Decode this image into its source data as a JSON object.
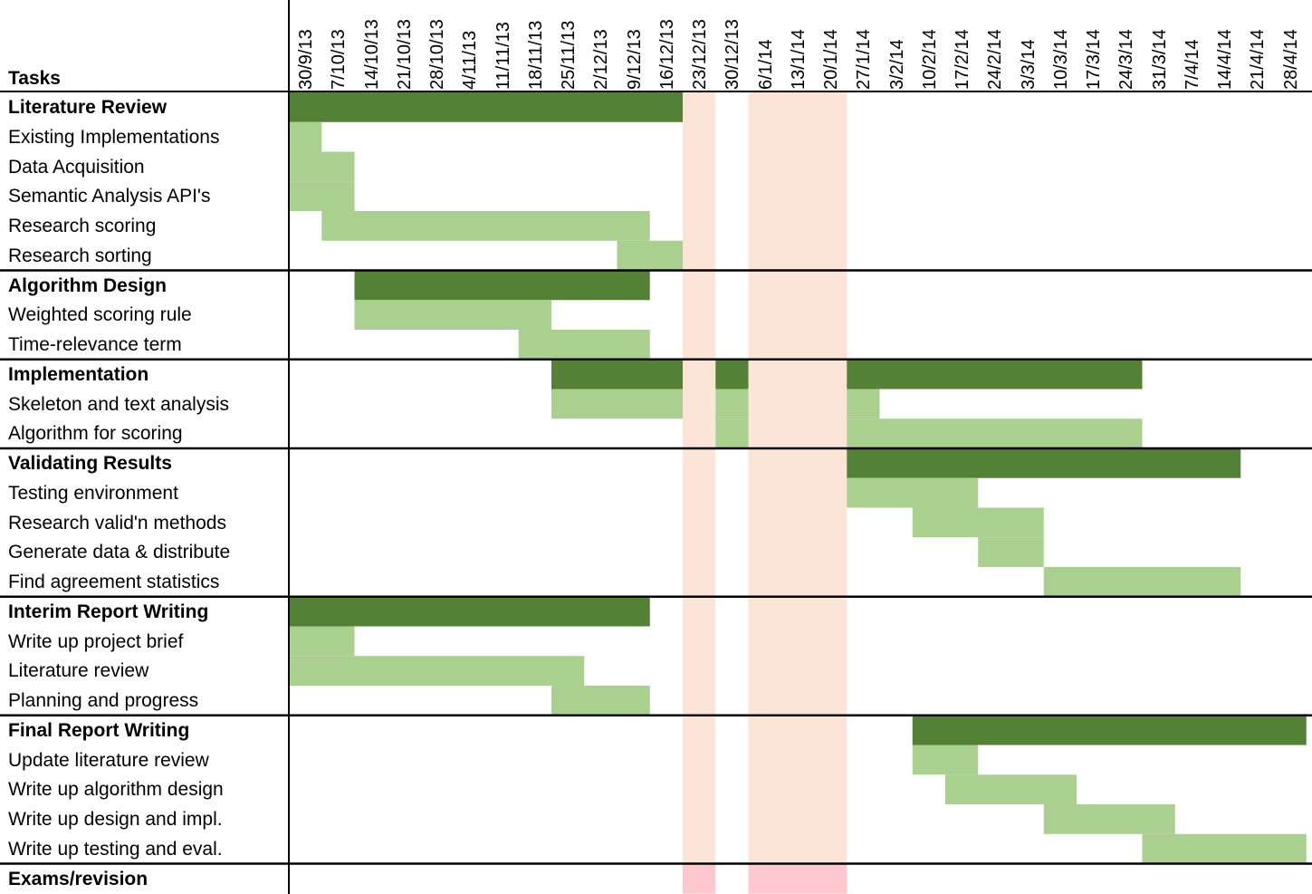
{
  "chart_data": {
    "type": "gantt",
    "header": "Tasks",
    "weeks": [
      "30/9/13",
      "7/10/13",
      "14/10/13",
      "21/10/13",
      "28/10/13",
      "4/11/13",
      "11/11/13",
      "18/11/13",
      "25/11/13",
      "2/12/13",
      "9/12/13",
      "16/12/13",
      "23/12/13",
      "30/12/13",
      "6/1/14",
      "13/1/14",
      "20/1/14",
      "27/1/14",
      "3/2/14",
      "10/2/14",
      "17/2/14",
      "24/2/14",
      "3/3/14",
      "10/3/14",
      "17/3/14",
      "24/3/14",
      "31/3/14",
      "7/4/14",
      "14/4/14",
      "21/4/14",
      "28/4/14"
    ],
    "exam_periods": [
      {
        "start": "23/12/13",
        "end": "23/12/13"
      },
      {
        "start": "6/1/14",
        "end": "20/1/14"
      }
    ],
    "groups": [
      {
        "name": "Literature Review",
        "start": "30/9/13",
        "end": "16/12/13",
        "tasks": [
          {
            "name": "Existing Implementations",
            "start": "30/9/13",
            "end": "30/9/13"
          },
          {
            "name": "Data Acquisition",
            "start": "30/9/13",
            "end": "7/10/13"
          },
          {
            "name": "Semantic Analysis API's",
            "start": "30/9/13",
            "end": "7/10/13"
          },
          {
            "name": "Research scoring",
            "start": "7/10/13",
            "end": "9/12/13"
          },
          {
            "name": "Research sorting",
            "start": "9/12/13",
            "end": "16/12/13"
          }
        ]
      },
      {
        "name": "Algorithm Design",
        "start": "14/10/13",
        "end": "9/12/13",
        "tasks": [
          {
            "name": "Weighted scoring rule",
            "start": "14/10/13",
            "end": "18/11/13"
          },
          {
            "name": "Time-relevance term",
            "start": "18/11/13",
            "end": "9/12/13"
          }
        ]
      },
      {
        "name": "Implementation",
        "segments": [
          {
            "start": "25/11/13",
            "end": "16/12/13"
          },
          {
            "start": "30/12/13",
            "end": "30/12/13"
          },
          {
            "start": "27/1/14",
            "end": "24/3/14"
          }
        ],
        "tasks": [
          {
            "name": "Skeleton and text analysis",
            "segments": [
              {
                "start": "25/11/13",
                "end": "16/12/13"
              },
              {
                "start": "30/12/13",
                "end": "30/12/13"
              },
              {
                "start": "27/1/14",
                "end": "27/1/14"
              }
            ]
          },
          {
            "name": "Algorithm for scoring",
            "segments": [
              {
                "start": "30/12/13",
                "end": "30/12/13"
              },
              {
                "start": "27/1/14",
                "end": "24/3/14"
              }
            ]
          }
        ]
      },
      {
        "name": "Validating Results",
        "start": "27/1/14",
        "end": "14/4/14",
        "tasks": [
          {
            "name": "Testing environment",
            "start": "27/1/14",
            "end": "17/2/14"
          },
          {
            "name": "Research valid'n methods",
            "start": "10/2/14",
            "end": "3/3/14"
          },
          {
            "name": "Generate data & distribute",
            "start": "24/2/14",
            "end": "3/3/14"
          },
          {
            "name": "Find agreement statistics",
            "start": "10/3/14",
            "end": "14/4/14"
          }
        ]
      },
      {
        "name": "Interim Report Writing",
        "start": "30/9/13",
        "end": "9/12/13",
        "tasks": [
          {
            "name": "Write up project brief",
            "start": "30/9/13",
            "end": "7/10/13"
          },
          {
            "name": "Literature review",
            "start": "30/9/13",
            "end": "25/11/13"
          },
          {
            "name": "Planning and progress",
            "start": "25/11/13",
            "end": "9/12/13"
          }
        ]
      },
      {
        "name": "Final Report Writing",
        "start": "10/2/14",
        "end": "28/4/14",
        "tasks": [
          {
            "name": "Update literature review",
            "start": "10/2/14",
            "end": "17/2/14"
          },
          {
            "name": "Write up algorithm design",
            "start": "17/2/14",
            "end": "10/3/14"
          },
          {
            "name": "Write up design and impl.",
            "start": "10/3/14",
            "end": "31/3/14"
          },
          {
            "name": "Write up testing and eval.",
            "start": "31/3/14",
            "end": "28/4/14"
          }
        ]
      },
      {
        "name": "Exams/revision",
        "segments": [
          {
            "start": "23/12/13",
            "end": "23/12/13"
          },
          {
            "start": "6/1/14",
            "end": "20/1/14"
          }
        ],
        "tasks": []
      }
    ],
    "colors": {
      "group_bar": "#538135",
      "task_bar": "#a9d08e",
      "holiday_band": "#fce4d6",
      "exam_bar": "#ffc7ce",
      "grid_line": "#000000"
    }
  }
}
